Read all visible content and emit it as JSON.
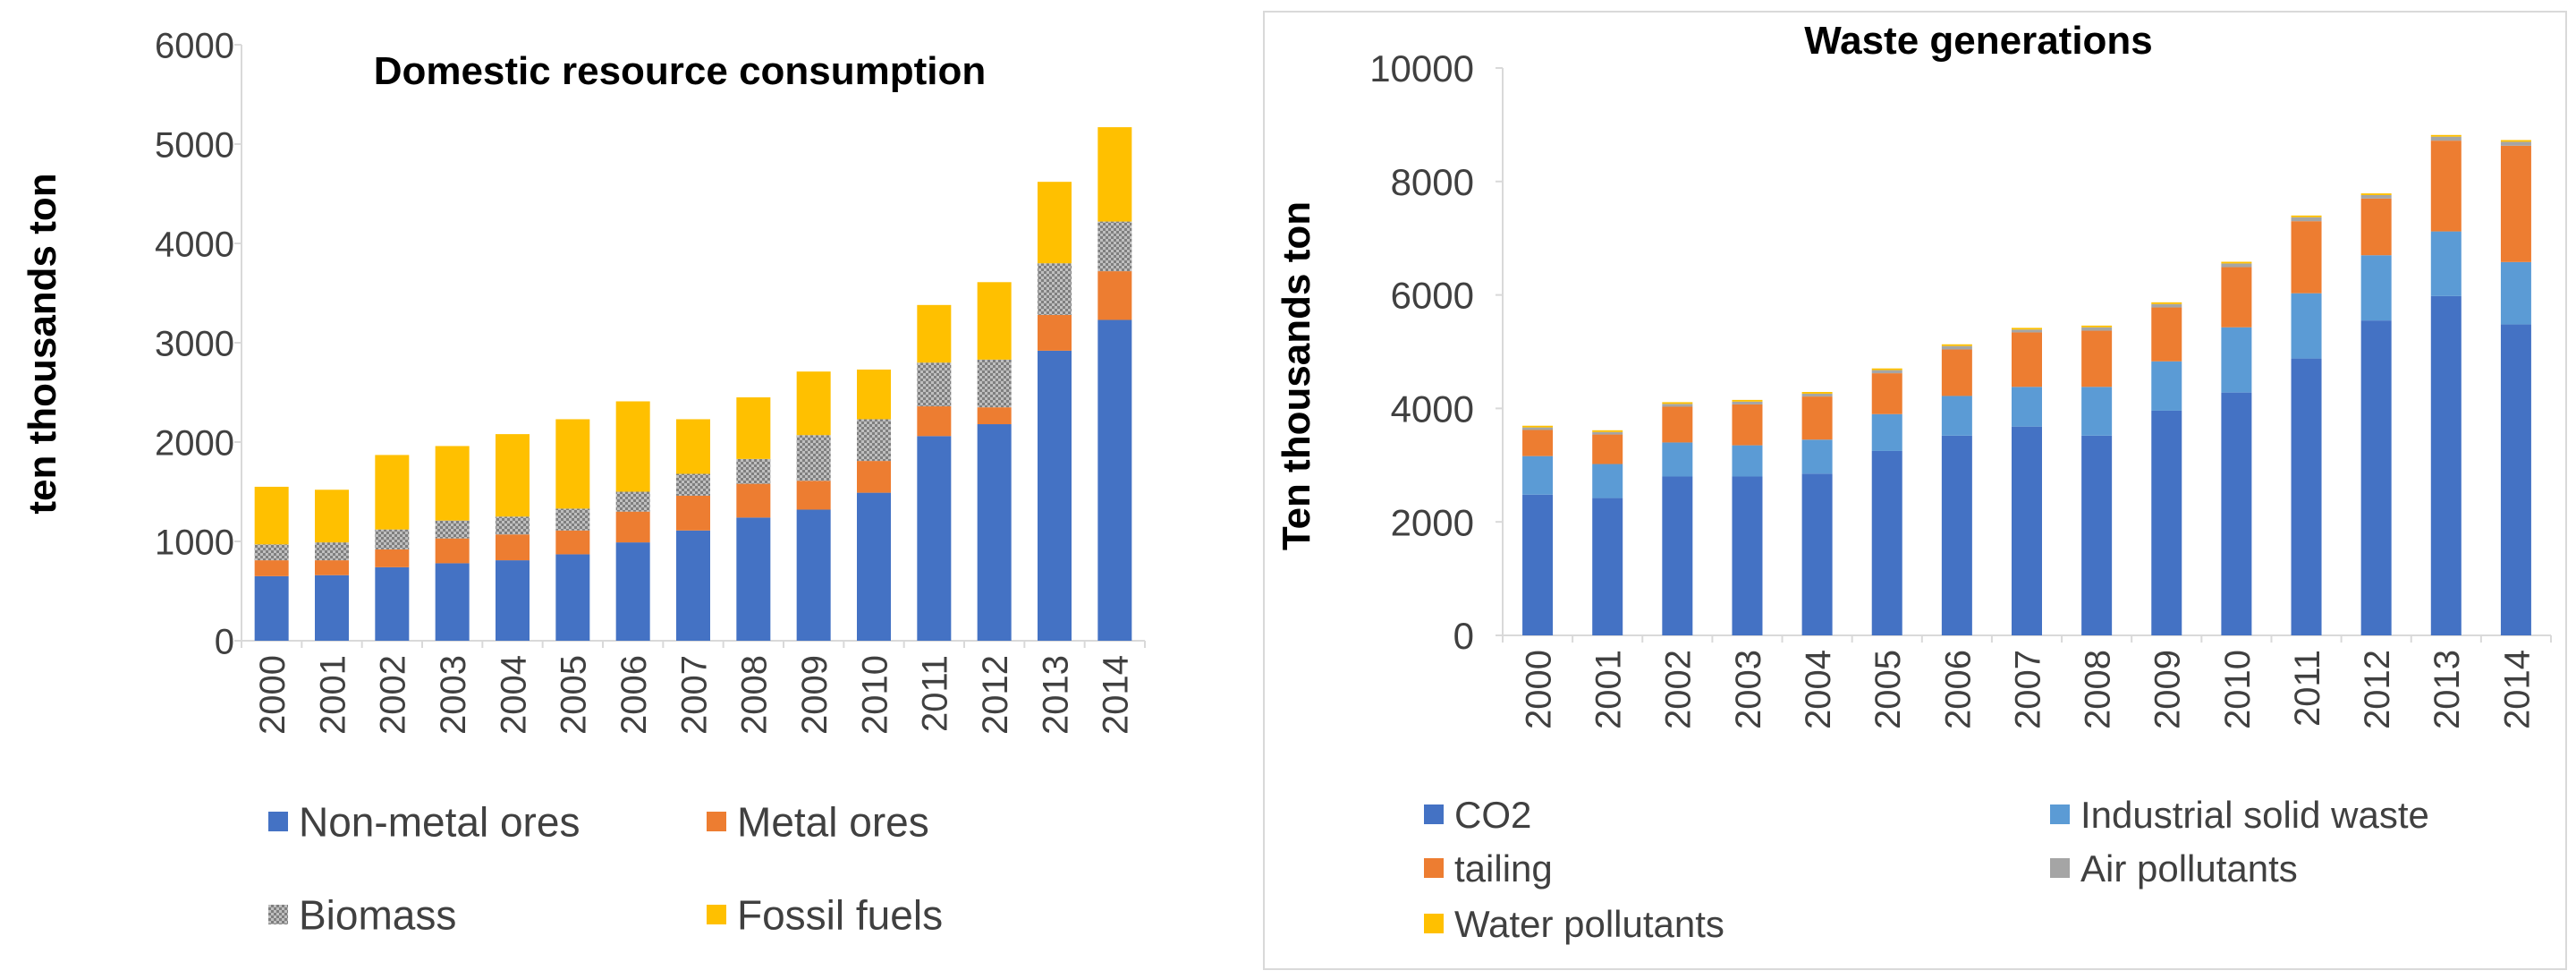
{
  "colors": {
    "blue": "#4472C4",
    "orange": "#ED7D31",
    "gray": "#A5A5A5",
    "yellow": "#FFC000",
    "axis": "#d9d9d9",
    "text": "#404040"
  },
  "chart_data": [
    {
      "type": "bar",
      "stacked": true,
      "title": "Domestic resource consumption",
      "ylabel": "ten thousands ton",
      "xlabel": "",
      "ylim": [
        0,
        6000
      ],
      "yticks": [
        0,
        1000,
        2000,
        3000,
        4000,
        5000,
        6000
      ],
      "grid": false,
      "legend_position": "bottom",
      "categories": [
        "2000",
        "2001",
        "2002",
        "2003",
        "2004",
        "2005",
        "2006",
        "2007",
        "2008",
        "2009",
        "2010",
        "2011",
        "2012",
        "2013",
        "2014"
      ],
      "series": [
        {
          "name": "Non-metal ores",
          "color": "#4472C4",
          "pattern": "solid",
          "values": [
            650,
            660,
            740,
            780,
            810,
            870,
            990,
            1110,
            1240,
            1320,
            1490,
            2060,
            2180,
            2920,
            3230
          ]
        },
        {
          "name": "Metal ores",
          "color": "#ED7D31",
          "pattern": "solid",
          "values": [
            160,
            150,
            180,
            250,
            260,
            240,
            310,
            350,
            340,
            290,
            320,
            300,
            170,
            360,
            490
          ]
        },
        {
          "name": "Biomass",
          "color": "#A5A5A5",
          "pattern": "checker",
          "values": [
            160,
            180,
            200,
            180,
            180,
            220,
            200,
            220,
            250,
            460,
            420,
            440,
            480,
            520,
            500
          ]
        },
        {
          "name": "Fossil fuels",
          "color": "#FFC000",
          "pattern": "solid",
          "values": [
            580,
            530,
            750,
            750,
            830,
            900,
            910,
            550,
            620,
            640,
            500,
            580,
            780,
            820,
            950
          ]
        }
      ]
    },
    {
      "type": "bar",
      "stacked": true,
      "title": "Waste generations",
      "ylabel": "Ten thousands ton",
      "xlabel": "",
      "ylim": [
        0,
        10000
      ],
      "yticks": [
        0,
        2000,
        4000,
        6000,
        8000,
        10000
      ],
      "grid": false,
      "legend_position": "bottom",
      "categories": [
        "2000",
        "2001",
        "2002",
        "2003",
        "2004",
        "2005",
        "2006",
        "2007",
        "2008",
        "2009",
        "2010",
        "2011",
        "2012",
        "2013",
        "2014"
      ],
      "series": [
        {
          "name": "CO2",
          "color": "#4472C4",
          "pattern": "solid",
          "values": [
            2480,
            2420,
            2800,
            2800,
            2850,
            3250,
            3520,
            3680,
            3520,
            3960,
            4280,
            4880,
            5550,
            5980,
            5480
          ]
        },
        {
          "name": "Industrial solid waste",
          "color": "#5B9BD5",
          "pattern": "solid",
          "values": [
            680,
            600,
            600,
            550,
            600,
            650,
            700,
            700,
            860,
            870,
            1150,
            1150,
            1150,
            1140,
            1100
          ]
        },
        {
          "name": "tailing",
          "color": "#ED7D31",
          "pattern": "solid",
          "values": [
            460,
            520,
            630,
            720,
            760,
            720,
            820,
            960,
            990,
            950,
            1060,
            1270,
            1000,
            1600,
            2050
          ]
        },
        {
          "name": "Air pollutants",
          "color": "#A5A5A5",
          "pattern": "solid",
          "values": [
            45,
            45,
            50,
            50,
            50,
            55,
            60,
            50,
            60,
            60,
            65,
            70,
            60,
            70,
            70
          ]
        },
        {
          "name": "Water pollutants",
          "color": "#FFC000",
          "pattern": "solid",
          "values": [
            30,
            30,
            30,
            30,
            30,
            30,
            30,
            30,
            30,
            30,
            30,
            30,
            30,
            30,
            30
          ]
        }
      ]
    }
  ]
}
